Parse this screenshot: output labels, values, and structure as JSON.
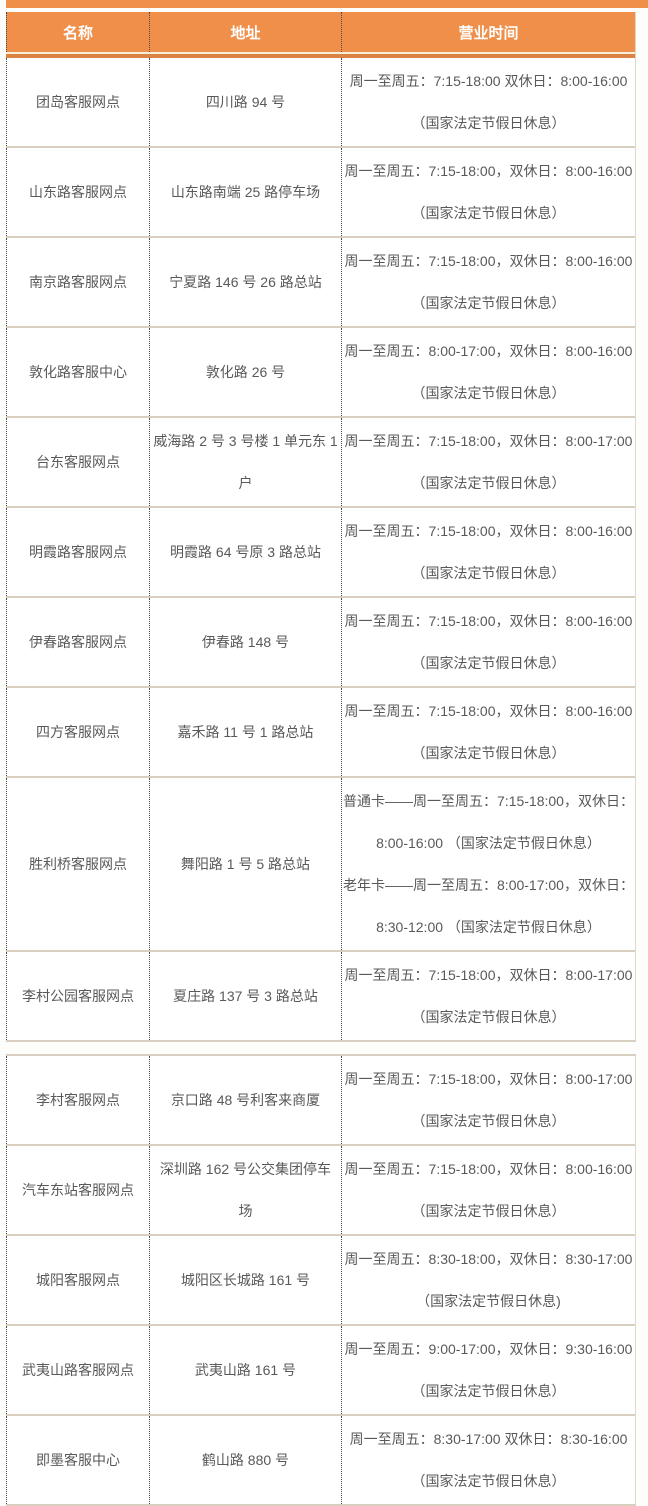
{
  "colors": {
    "accent_orange": "#ef8f49",
    "header_underline_orange": "#db8342",
    "row_border_tan": "#d8cfc0",
    "dotted_divider": "#4a4a4a",
    "body_text": "#58595b",
    "header_text": "#ffffff"
  },
  "table": {
    "columns": [
      "名称",
      "地址",
      "营业时间"
    ],
    "sections": [
      {
        "rows": [
          {
            "name": "团岛客服网点",
            "address_lines": [
              "四川路 94 号"
            ],
            "hours_lines": [
              "周一至周五：7:15-18:00 双休日：8:00-16:00",
              "（国家法定节假日休息）"
            ]
          },
          {
            "name": "山东路客服网点",
            "address_lines": [
              "山东路南端 25 路停车场"
            ],
            "hours_lines": [
              "周一至周五：7:15-18:00，双休日：8:00-16:00",
              "（国家法定节假日休息）"
            ]
          },
          {
            "name": "南京路客服网点",
            "address_lines": [
              "宁夏路 146 号 26 路总站"
            ],
            "hours_lines": [
              "周一至周五：7:15-18:00，双休日：8:00-16:00",
              "（国家法定节假日休息）"
            ]
          },
          {
            "name": "敦化路客服中心",
            "address_lines": [
              "敦化路 26 号"
            ],
            "hours_lines": [
              "周一至周五：8:00-17:00，双休日：8:00-16:00",
              "（国家法定节假日休息）"
            ]
          },
          {
            "name": "台东客服网点",
            "address_lines": [
              "威海路 2 号 3 号楼 1 单元东 1",
              "户"
            ],
            "hours_lines": [
              "周一至周五：7:15-18:00，双休日：8:00-17:00",
              "（国家法定节假日休息）"
            ]
          },
          {
            "name": "明霞路客服网点",
            "address_lines": [
              "明霞路 64 号原 3 路总站"
            ],
            "hours_lines": [
              "周一至周五：7:15-18:00，双休日：8:00-16:00",
              "（国家法定节假日休息）"
            ]
          },
          {
            "name": "伊春路客服网点",
            "address_lines": [
              "伊春路 148 号"
            ],
            "hours_lines": [
              "周一至周五：7:15-18:00，双休日：8:00-16:00",
              "（国家法定节假日休息）"
            ]
          },
          {
            "name": "四方客服网点",
            "address_lines": [
              "嘉禾路 11 号 1 路总站"
            ],
            "hours_lines": [
              "周一至周五：7:15-18:00，双休日：8:00-16:00",
              "（国家法定节假日休息）"
            ]
          },
          {
            "name": "胜利桥客服网点",
            "address_lines": [
              "舞阳路 1 号 5 路总站"
            ],
            "hours_lines": [
              "普通卡——周一至周五：7:15-18:00，双休日：",
              "8:00-16:00 （国家法定节假日休息）",
              "老年卡——周一至周五：8:00-17:00，双休日：",
              "8:30-12:00 （国家法定节假日休息）"
            ]
          },
          {
            "name": "李村公园客服网点",
            "address_lines": [
              "夏庄路 137 号 3 路总站"
            ],
            "hours_lines": [
              "周一至周五：7:15-18:00，双休日：8:00-17:00",
              "（国家法定节假日休息）"
            ]
          }
        ]
      },
      {
        "rows": [
          {
            "name": "李村客服网点",
            "address_lines": [
              "京口路 48 号利客来商厦"
            ],
            "hours_lines": [
              "周一至周五：7:15-18:00，双休日：8:00-17:00",
              "（国家法定节假日休息）"
            ]
          },
          {
            "name": "汽车东站客服网点",
            "address_lines": [
              "深圳路 162 号公交集团停车",
              "场"
            ],
            "hours_lines": [
              "周一至周五：7:15-18:00，双休日：8:00-16:00",
              "（国家法定节假日休息）"
            ]
          },
          {
            "name": "城阳客服网点",
            "address_lines": [
              "城阳区长城路 161 号"
            ],
            "hours_lines": [
              "周一至周五：8:30-18:00，双休日：8:30-17:00",
              "（国家法定节假日休息)"
            ]
          },
          {
            "name": "武夷山路客服网点",
            "address_lines": [
              "武夷山路 161 号"
            ],
            "hours_lines": [
              "周一至周五：9:00-17:00，双休日：9:30-16:00",
              "（国家法定节假日休息）"
            ]
          },
          {
            "name": "即墨客服中心",
            "address_lines": [
              "鹤山路 880 号"
            ],
            "hours_lines": [
              "周一至周五：8:30-17:00 双休日：8:30-16:00",
              "（国家法定节假日休息）"
            ]
          }
        ]
      }
    ]
  }
}
